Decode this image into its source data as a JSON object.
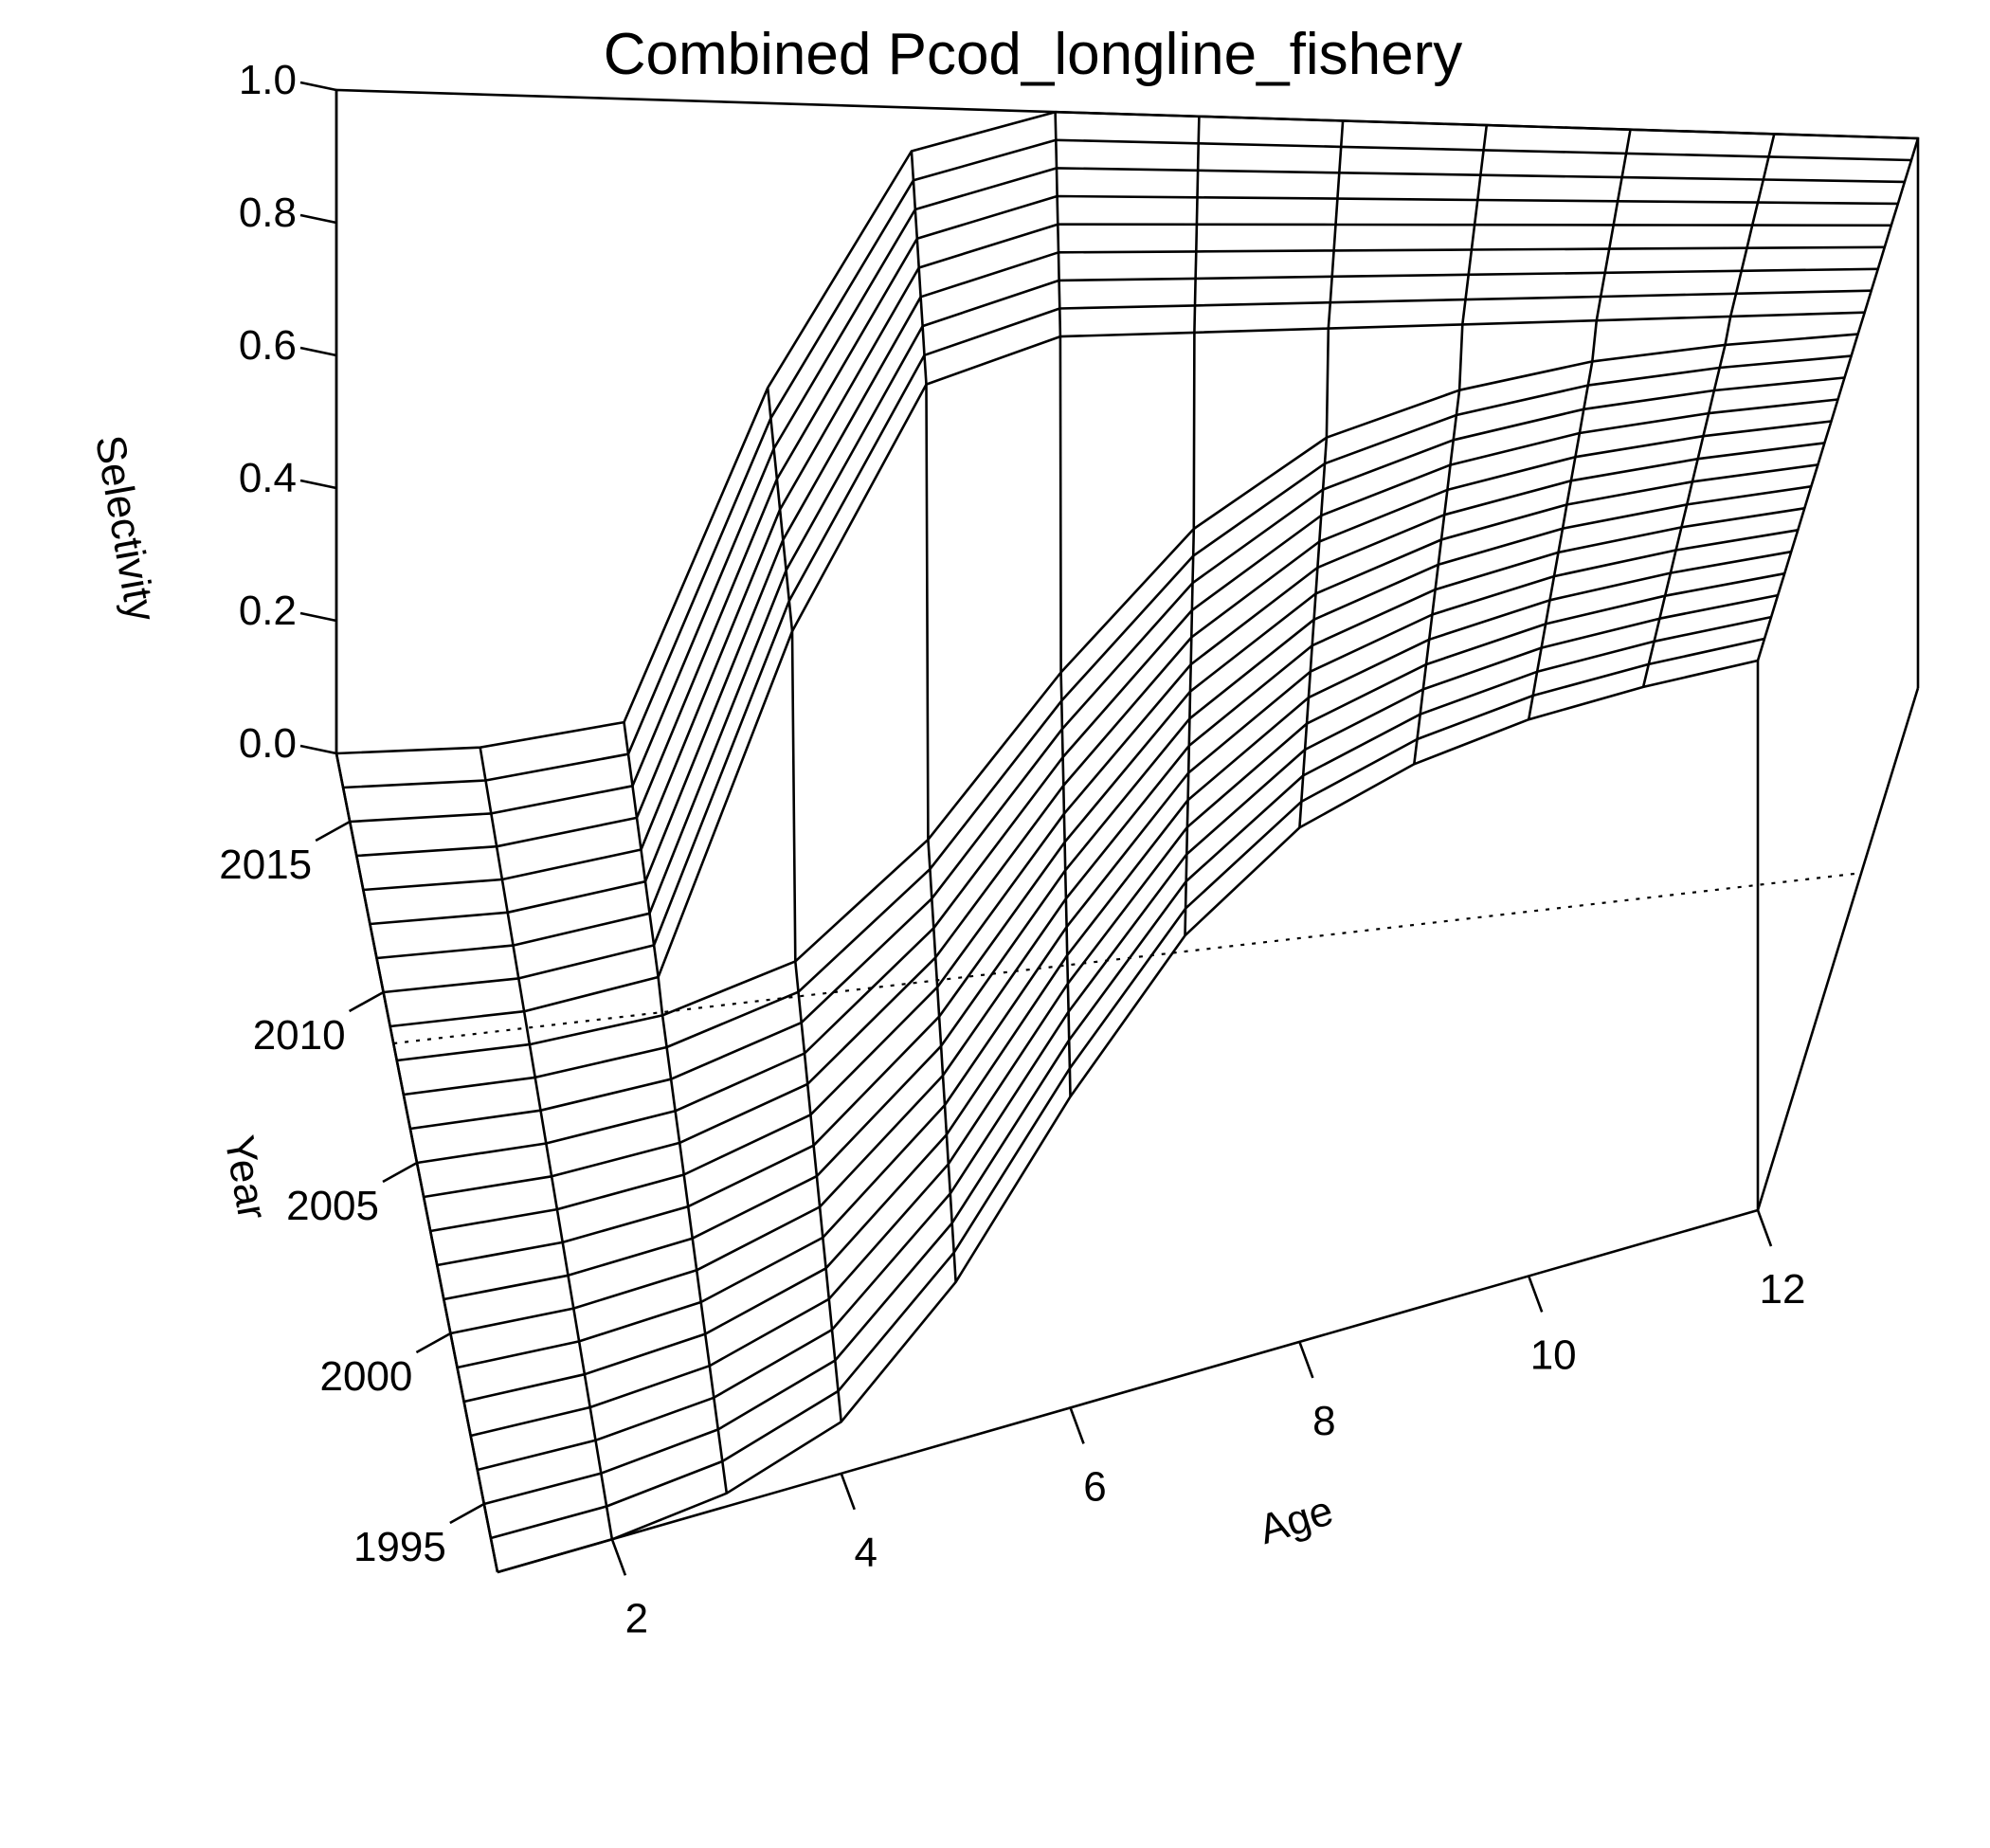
{
  "chart_data": {
    "type": "surface",
    "title": "Combined Pcod_longline_fishery",
    "xlabel": "Age",
    "ylabel": "Year",
    "zlabel": "Selectivity",
    "x_ticks": [
      "2",
      "4",
      "6",
      "8",
      "10",
      "12"
    ],
    "y_ticks": [
      "1995",
      "2000",
      "2005",
      "2010",
      "2015"
    ],
    "z_ticks": [
      "0.0",
      "0.2",
      "0.4",
      "0.6",
      "0.8",
      "1.0"
    ],
    "xlim": [
      1,
      12
    ],
    "ylim": [
      1993,
      2017
    ],
    "zlim": [
      0,
      1
    ],
    "ages": [
      1,
      2,
      3,
      4,
      5,
      6,
      7,
      8,
      9,
      10,
      11,
      12
    ],
    "year_blocks": [
      {
        "years": [
          1993,
          2008
        ],
        "selectivity": [
          0.0,
          0.0,
          0.02,
          0.08,
          0.25,
          0.5,
          0.72,
          0.86,
          0.93,
          0.97,
          0.99,
          1.0
        ]
      },
      {
        "years": [
          2009,
          2017
        ],
        "selectivity": [
          0.0,
          0.0,
          0.03,
          0.55,
          0.93,
          1.0,
          1.0,
          1.0,
          1.0,
          1.0,
          1.0,
          1.0
        ]
      }
    ],
    "reference_year": 2008.5
  }
}
